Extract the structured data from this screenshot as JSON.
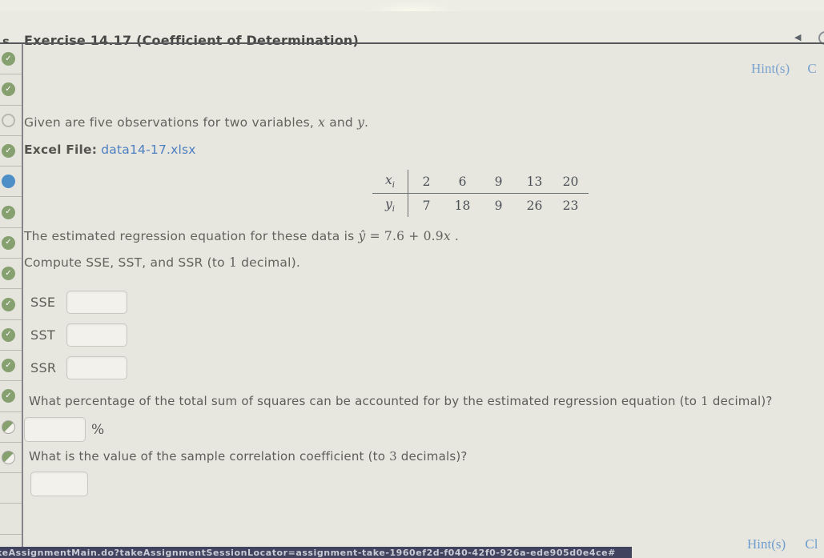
{
  "header": {
    "edge_text": "s",
    "title": "Exercise 14.17 (Coefficient of Determination)",
    "back_icon": "◀",
    "hint_label": "Hint(s)",
    "check_partial": "C"
  },
  "sidebar": {
    "check_glyph": "✓",
    "icons": [
      "check",
      "check",
      "open",
      "check",
      "current",
      "check",
      "check",
      "check",
      "check",
      "check",
      "check",
      "check",
      "partial",
      "partial",
      "empty",
      "empty"
    ]
  },
  "main": {
    "intro": {
      "prefix": "Given are five observations for two variables, ",
      "x": "x",
      "mid": " and ",
      "y": "y",
      "suffix": "."
    },
    "excel": {
      "label": "Excel File:",
      "link": "data14-17.xlsx"
    },
    "table": {
      "rows": [
        {
          "var": "x",
          "sub": "i",
          "values": [
            "2",
            "6",
            "9",
            "13",
            "20"
          ]
        },
        {
          "var": "y",
          "sub": "i",
          "values": [
            "7",
            "18",
            "9",
            "26",
            "23"
          ]
        }
      ]
    },
    "regression": {
      "prefix": "The estimated regression equation for these data is ",
      "yhat": "ŷ",
      "body": " = 7.6 + 0.9",
      "x": "x",
      "suffix": " ."
    },
    "compute": {
      "prefix": "Compute SSE, SST, and SSR (to ",
      "num": "1",
      "suffix": " decimal)."
    },
    "fields": [
      {
        "label": "SSE",
        "value": ""
      },
      {
        "label": "SST",
        "value": ""
      },
      {
        "label": "SSR",
        "value": ""
      }
    ],
    "percent_q": {
      "prefix": "What percentage of the total sum of squares can be accounted for by the estimated regression equation (to ",
      "num": "1",
      "suffix": " decimal)?"
    },
    "percent_unit": "%",
    "percent_value": "",
    "corr_q": {
      "prefix": "What is the value of the sample correlation coefficient (to ",
      "num": "3",
      "suffix": " decimals)?"
    },
    "corr_value": ""
  },
  "footer": {
    "hint_label": "Hint(s)",
    "check_partial": "Cl",
    "status_url": "keAssignmentMain.do?takeAssignmentSessionLocator=assignment-take-1960ef2d-f040-42f0-926a-ede905d0e4ce#"
  },
  "colors": {
    "complete_green": "#87a06f",
    "current_blue": "#4e8fc7",
    "link_blue": "#4d7fc0",
    "hint_blue": "#7ba3cf",
    "status_bar_navy": "#42445f"
  }
}
